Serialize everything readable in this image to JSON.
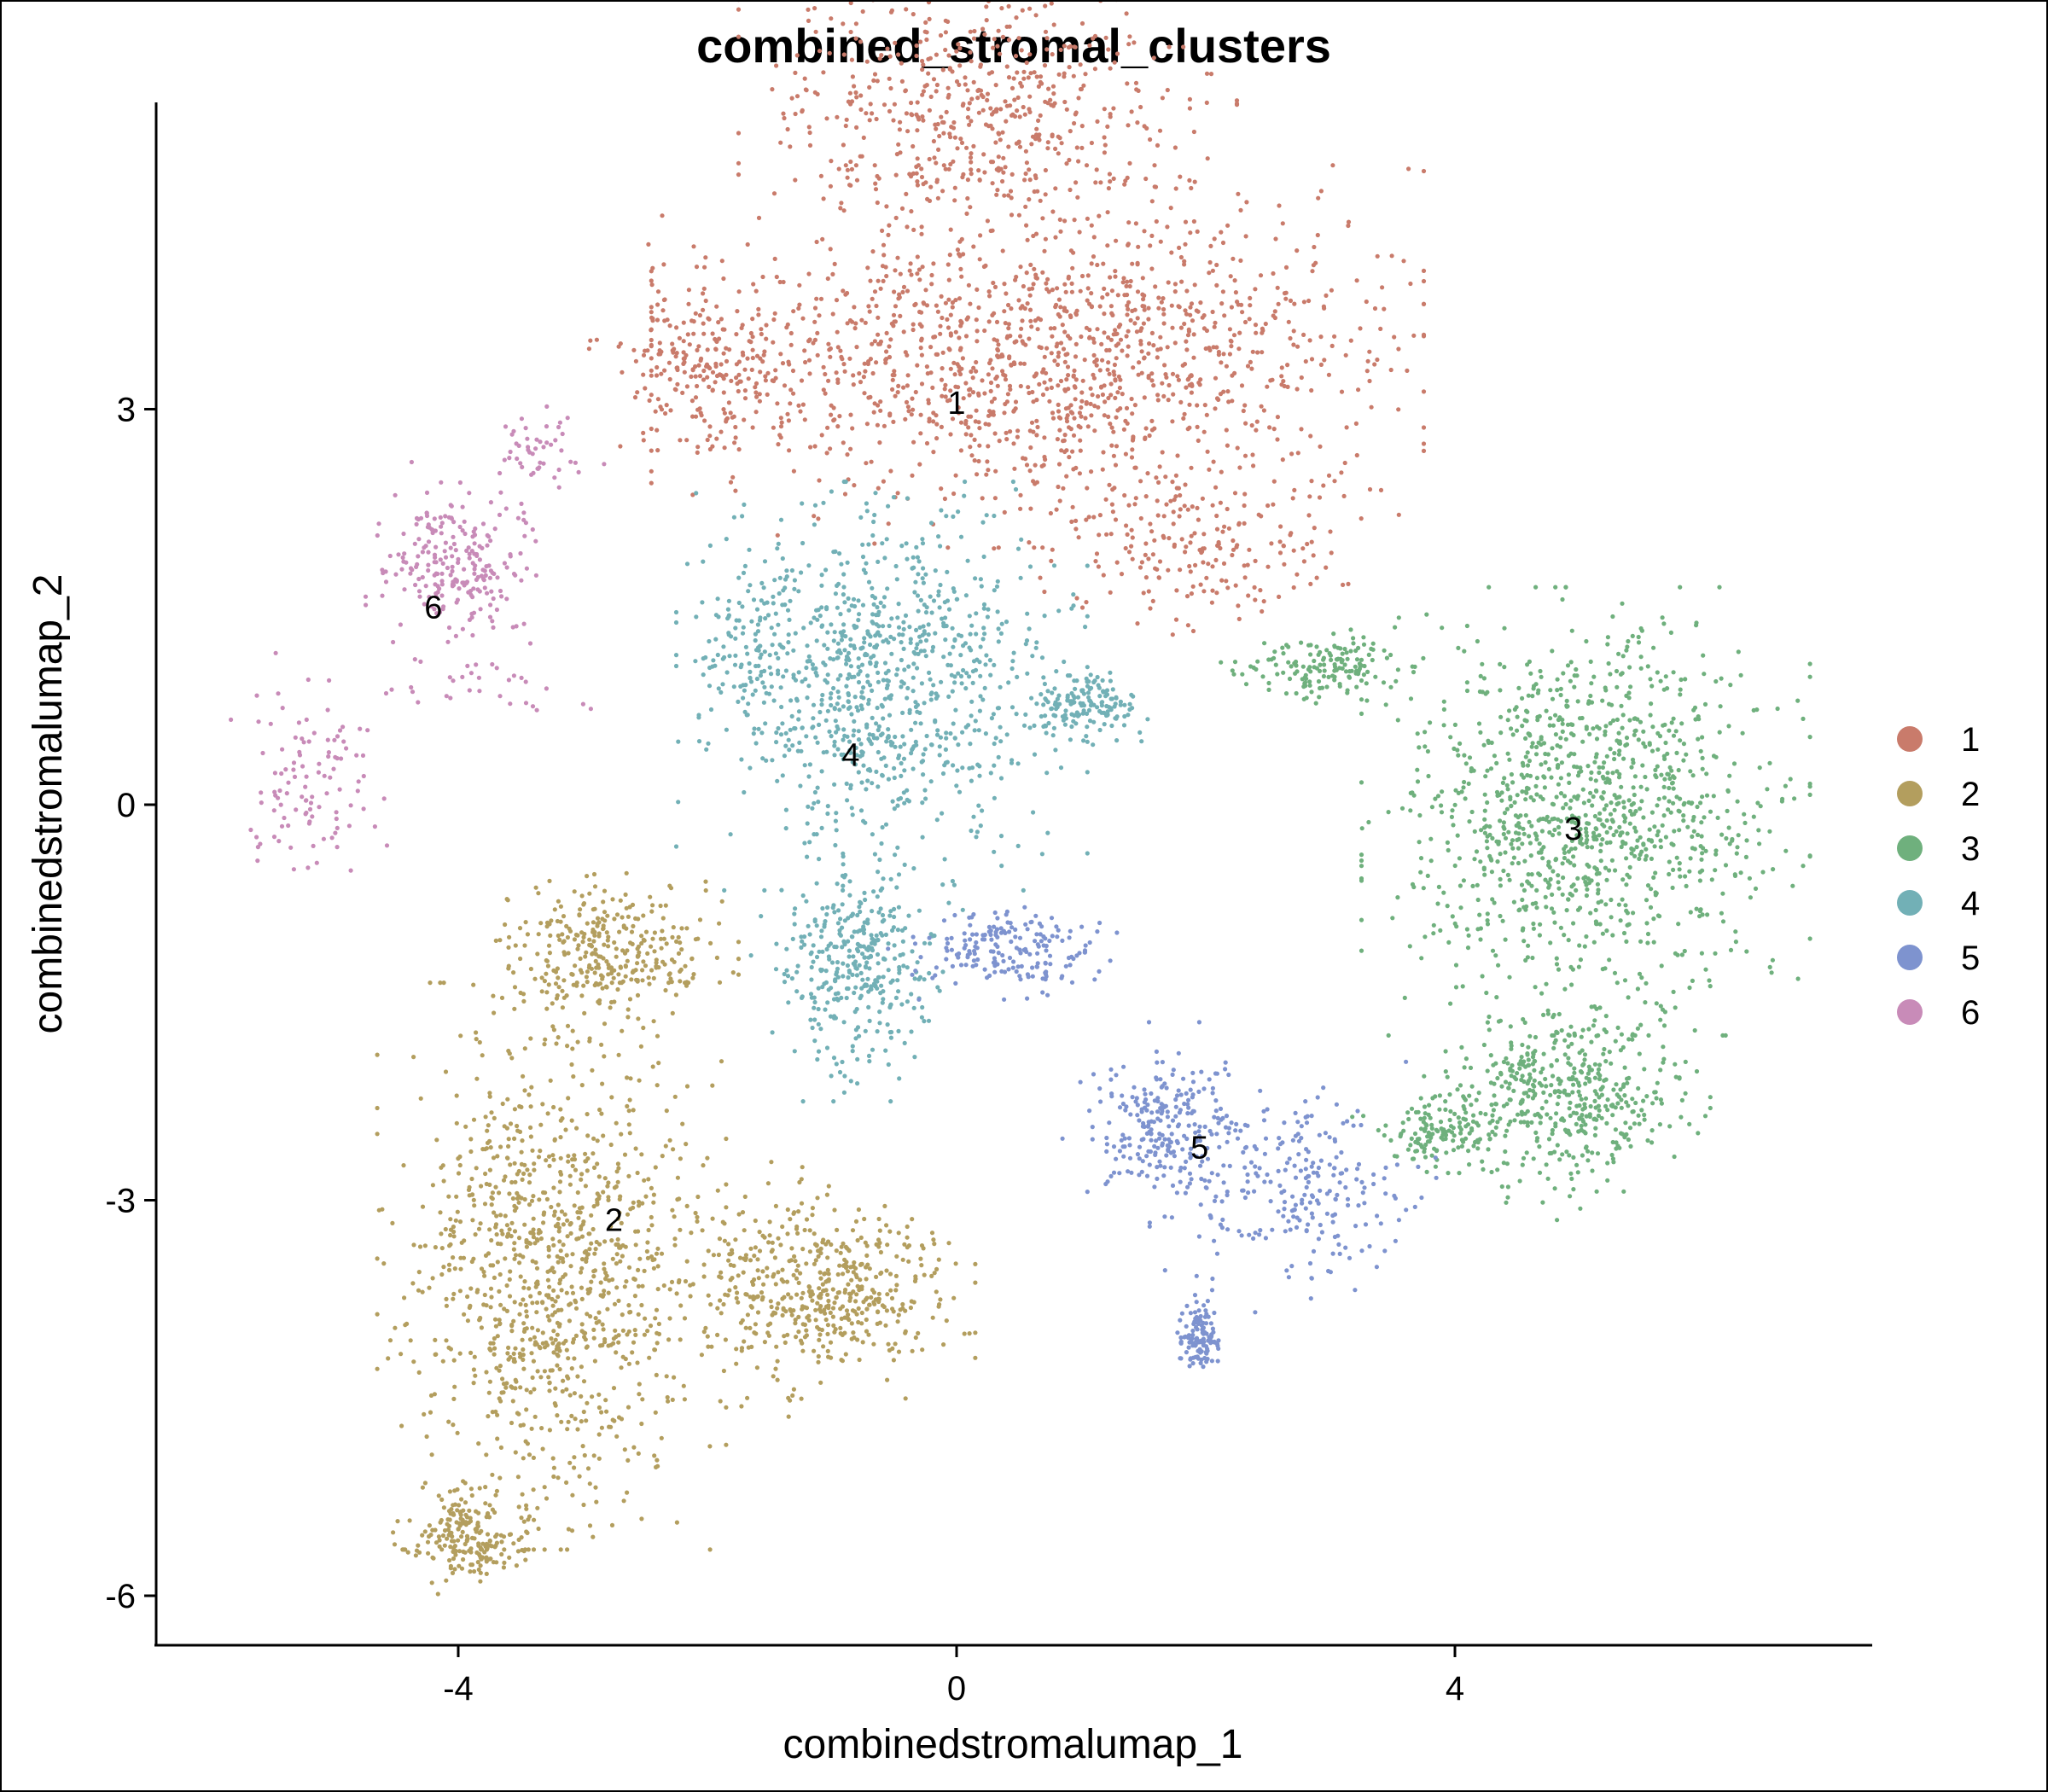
{
  "chart_data": {
    "type": "scatter",
    "title": "combined_stromal_clusters",
    "xlabel": "combinedstromalumap_1",
    "ylabel": "combinedstromalumap_2",
    "xlim": [
      -6.4,
      7.4
    ],
    "ylim": [
      -6.4,
      7.3
    ],
    "xticks": [
      {
        "value": -4,
        "label": "-4"
      },
      {
        "value": 0,
        "label": "0"
      },
      {
        "value": 4,
        "label": "4"
      }
    ],
    "yticks": [
      {
        "value": -6,
        "label": "-6"
      },
      {
        "value": -3,
        "label": "-3"
      },
      {
        "value": 0,
        "label": "0"
      },
      {
        "value": 3,
        "label": "3"
      }
    ],
    "grid": false,
    "legend_position": "right",
    "series": [
      {
        "name": "1",
        "color": "#C97B6B",
        "label_at": [
          0.0,
          3.05
        ],
        "n": 2300,
        "regions": [
          {
            "x": [
              -2.2,
              3.5
            ],
            "y": [
              2.2,
              4.6
            ],
            "w": 0.55
          },
          {
            "x": [
              -1.5,
              2.0
            ],
            "y": [
              4.3,
              6.3
            ],
            "w": 0.25
          },
          {
            "x": [
              -2.8,
              -1.2
            ],
            "y": [
              2.6,
              4.0
            ],
            "w": 0.1
          },
          {
            "x": [
              0.5,
              3.3
            ],
            "y": [
              1.3,
              2.6
            ],
            "w": 0.1
          }
        ]
      },
      {
        "name": "2",
        "color": "#B39E5E",
        "label_at": [
          -2.75,
          -3.15
        ],
        "n": 2100,
        "regions": [
          {
            "x": [
              -4.4,
              -2.1
            ],
            "y": [
              -5.4,
              -1.6
            ],
            "w": 0.5
          },
          {
            "x": [
              -3.6,
              -2.0
            ],
            "y": [
              -1.6,
              -0.6
            ],
            "w": 0.15
          },
          {
            "x": [
              -2.2,
              -0.1
            ],
            "y": [
              -4.4,
              -2.9
            ],
            "w": 0.25
          },
          {
            "x": [
              -4.4,
              -3.5
            ],
            "y": [
              -5.9,
              -5.2
            ],
            "w": 0.1
          }
        ]
      },
      {
        "name": "3",
        "color": "#6FB07D",
        "label_at": [
          4.95,
          -0.18
        ],
        "n": 1900,
        "regions": [
          {
            "x": [
              3.5,
              6.6
            ],
            "y": [
              -1.5,
              1.4
            ],
            "w": 0.6
          },
          {
            "x": [
              3.9,
              5.8
            ],
            "y": [
              -2.9,
              -1.5
            ],
            "w": 0.25
          },
          {
            "x": [
              2.3,
              3.6
            ],
            "y": [
              0.8,
              1.3
            ],
            "w": 0.08
          },
          {
            "x": [
              3.4,
              4.3
            ],
            "y": [
              -2.8,
              -2.2
            ],
            "w": 0.07
          }
        ]
      },
      {
        "name": "4",
        "color": "#72B0B6",
        "label_at": [
          -0.85,
          0.38
        ],
        "n": 1500,
        "regions": [
          {
            "x": [
              -2.0,
              0.8
            ],
            "y": [
              -0.4,
              2.2
            ],
            "w": 0.6
          },
          {
            "x": [
              -1.4,
              -0.2
            ],
            "y": [
              -2.0,
              -0.4
            ],
            "w": 0.25
          },
          {
            "x": [
              0.6,
              1.5
            ],
            "y": [
              0.5,
              1.0
            ],
            "w": 0.1
          },
          {
            "x": [
              -2.1,
              -1.2
            ],
            "y": [
              0.8,
              1.8
            ],
            "w": 0.05
          }
        ]
      },
      {
        "name": "5",
        "color": "#7E93CF",
        "label_at": [
          1.95,
          -2.6
        ],
        "n": 800,
        "regions": [
          {
            "x": [
              -0.3,
              1.2
            ],
            "y": [
              -1.4,
              -0.8
            ],
            "w": 0.25
          },
          {
            "x": [
              1.1,
              2.3
            ],
            "y": [
              -3.0,
              -1.9
            ],
            "w": 0.3
          },
          {
            "x": [
              1.8,
              3.6
            ],
            "y": [
              -3.6,
              -2.2
            ],
            "w": 0.3
          },
          {
            "x": [
              1.8,
              2.1
            ],
            "y": [
              -4.3,
              -3.8
            ],
            "w": 0.15
          }
        ]
      },
      {
        "name": "6",
        "color": "#C88BB8",
        "label_at": [
          -4.2,
          1.5
        ],
        "n": 420,
        "regions": [
          {
            "x": [
              -4.6,
              -3.4
            ],
            "y": [
              1.3,
              2.4
            ],
            "w": 0.5
          },
          {
            "x": [
              -5.7,
              -4.6
            ],
            "y": [
              -0.6,
              0.9
            ],
            "w": 0.3
          },
          {
            "x": [
              -3.8,
              -2.8
            ],
            "y": [
              2.4,
              3.0
            ],
            "w": 0.12
          },
          {
            "x": [
              -4.6,
              -3.0
            ],
            "y": [
              0.5,
              1.3
            ],
            "w": 0.08
          }
        ]
      }
    ]
  }
}
